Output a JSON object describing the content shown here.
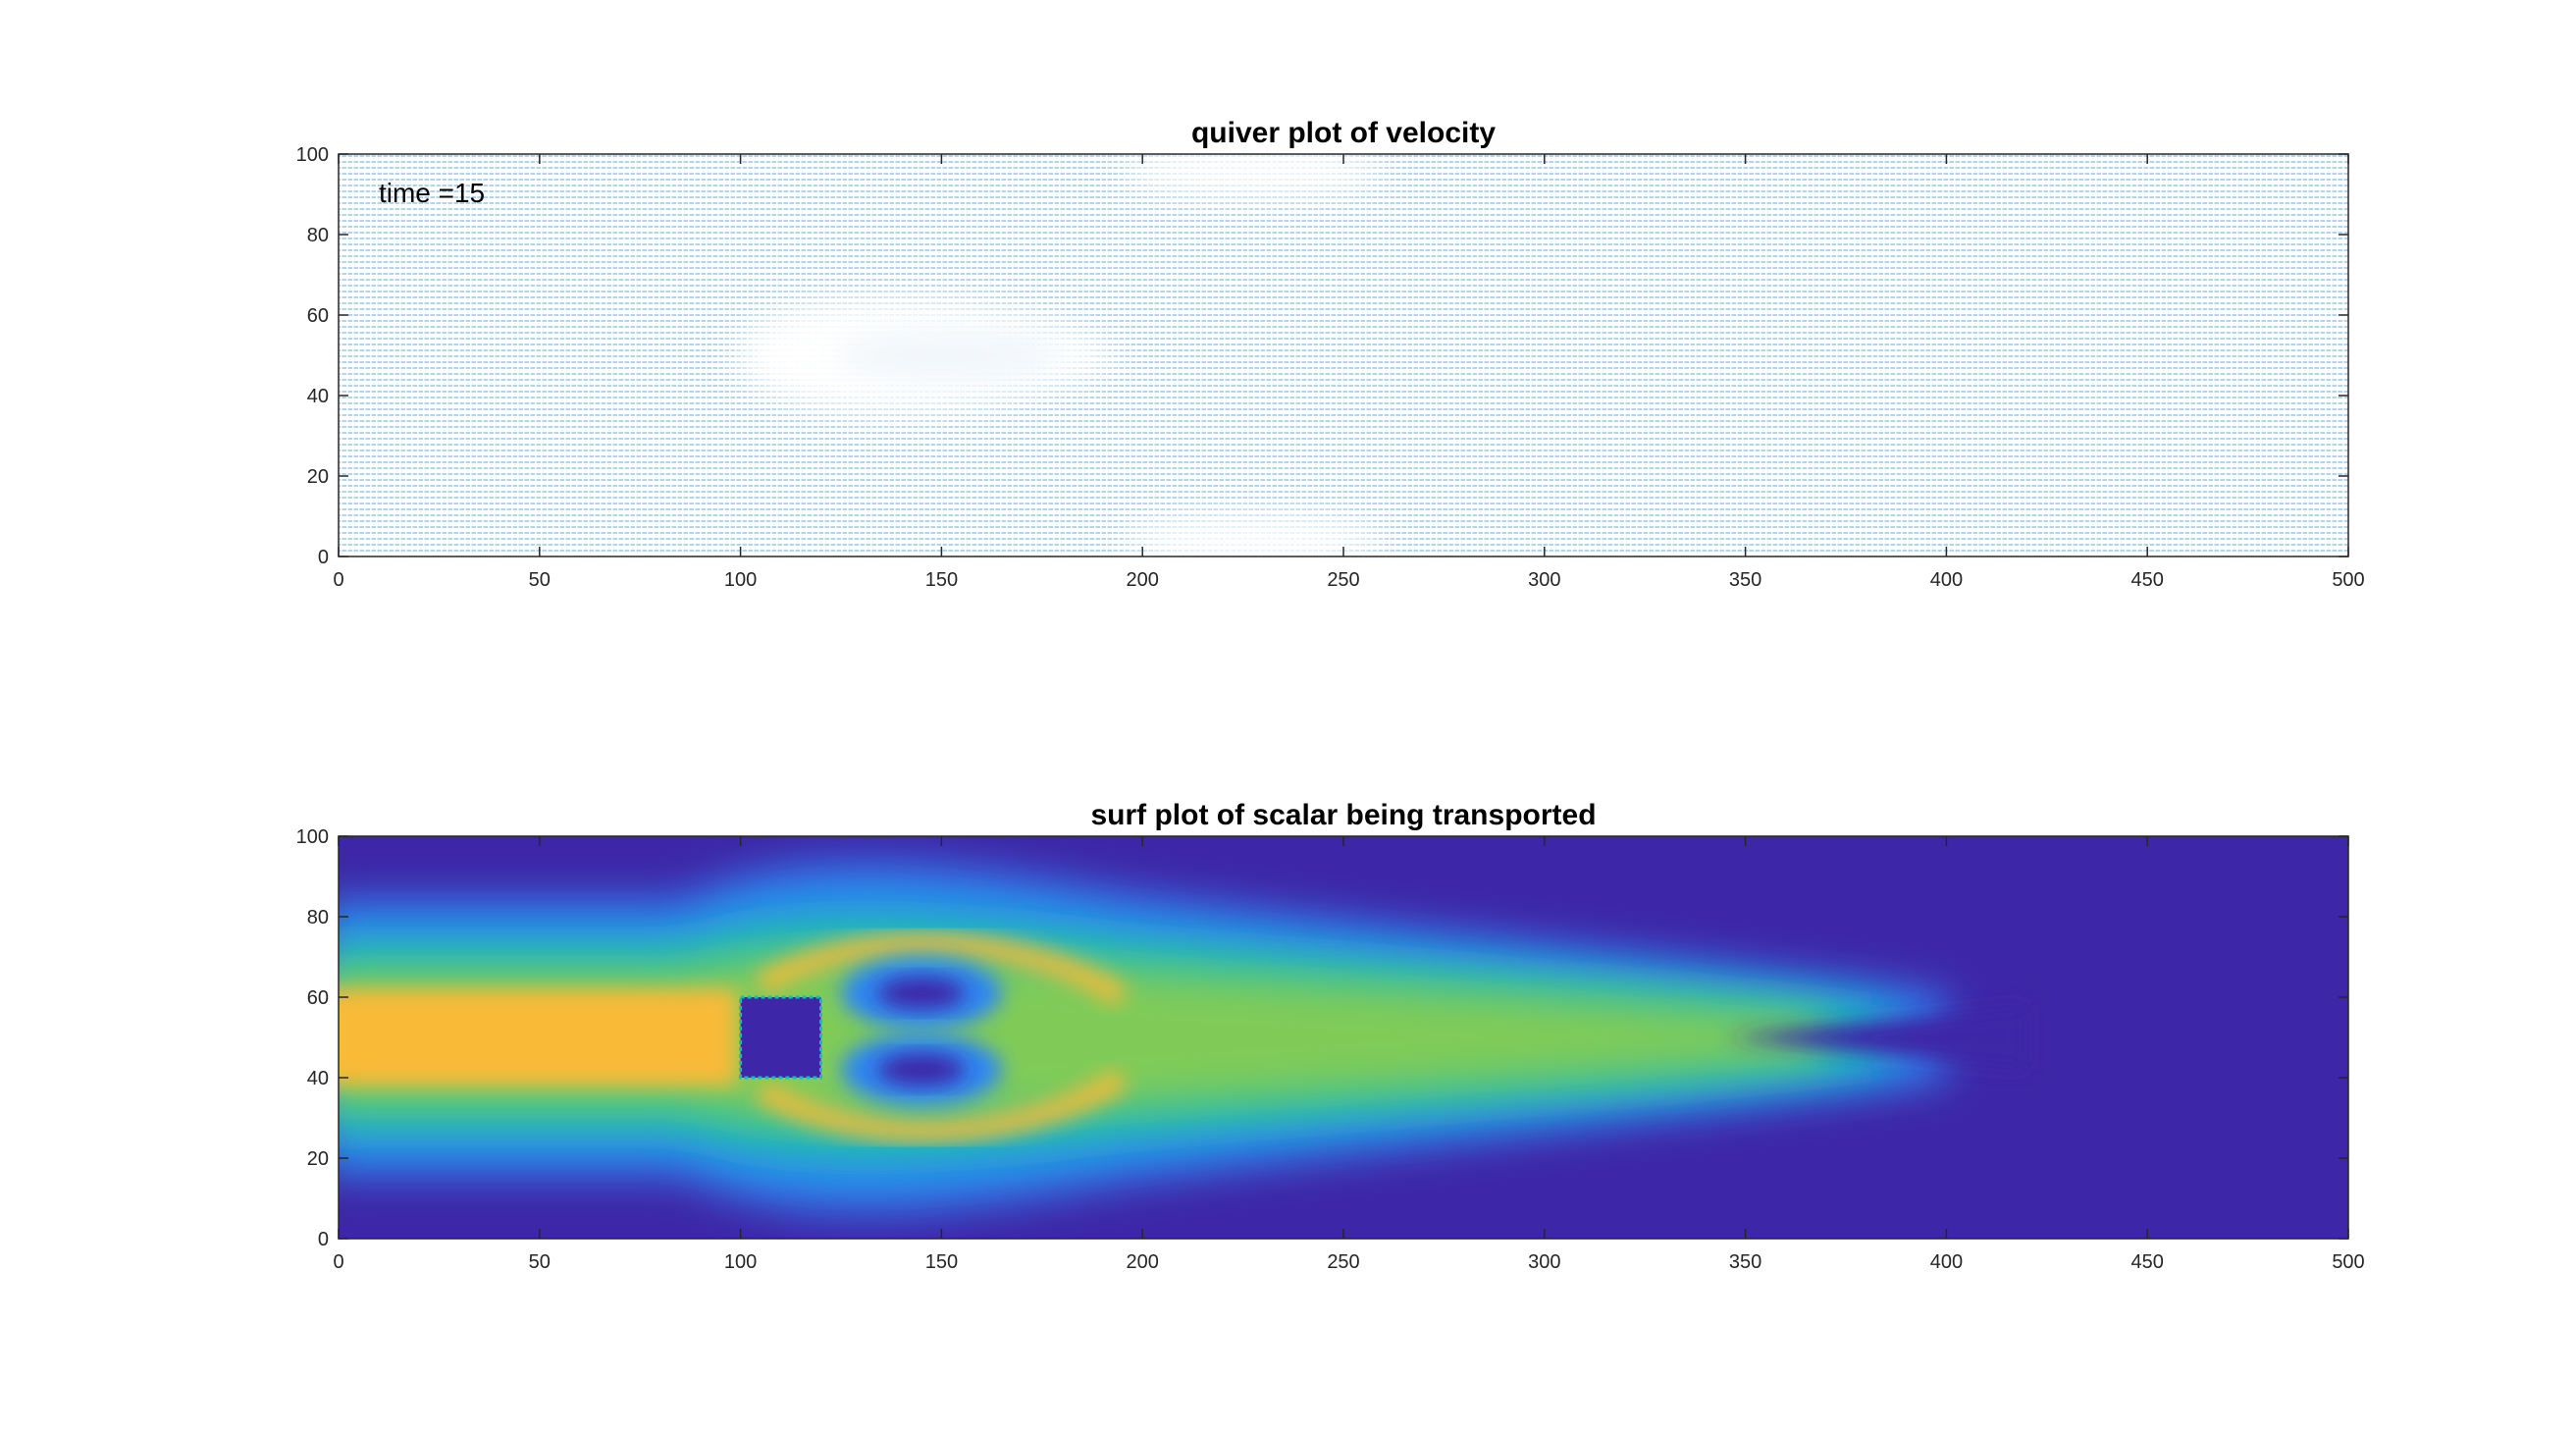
{
  "figure": {
    "background": "#ffffff"
  },
  "chart_data": [
    {
      "type": "quiver",
      "title": "quiver plot of velocity",
      "xlabel": "",
      "ylabel": "",
      "xlim": [
        0,
        500
      ],
      "ylim": [
        0,
        100
      ],
      "xticks": [
        "0",
        "50",
        "100",
        "150",
        "200",
        "250",
        "300",
        "350",
        "400",
        "450",
        "500"
      ],
      "yticks": [
        "0",
        "20",
        "40",
        "60",
        "80",
        "100"
      ],
      "annotation": {
        "text": "time =15",
        "x": 10,
        "y": 88
      },
      "arrow_color": "#0072BD",
      "grid": false,
      "regions": [
        {
          "shape": "teardrop-wake",
          "x_range": [
            100,
            195
          ],
          "y_range": [
            35,
            65
          ],
          "meaning": "low-velocity region"
        },
        {
          "shape": "upper-band",
          "x_range": [
            200,
            255
          ],
          "y_range": [
            92,
            100
          ],
          "meaning": "low-velocity region"
        },
        {
          "shape": "lower-band",
          "x_range": [
            200,
            255
          ],
          "y_range": [
            0,
            8
          ],
          "meaning": "low-velocity region"
        }
      ]
    },
    {
      "type": "heatmap",
      "title": "surf plot of scalar being transported",
      "xlabel": "",
      "ylabel": "",
      "xlim": [
        0,
        500
      ],
      "ylim": [
        0,
        100
      ],
      "xticks": [
        "0",
        "50",
        "100",
        "150",
        "200",
        "250",
        "300",
        "350",
        "400",
        "450",
        "500"
      ],
      "yticks": [
        "0",
        "20",
        "40",
        "60",
        "80",
        "100"
      ],
      "colormap": "parula",
      "colors": {
        "low": "#3E26A8",
        "blue": "#2E87F1",
        "cyan": "#12BEB9",
        "green": "#80CB58",
        "yellow": "#F9BA38",
        "high": "#FAD42C"
      },
      "obstacle": {
        "x_range": [
          100,
          120
        ],
        "y_range": [
          40,
          60
        ]
      },
      "grid": false,
      "legend": "none"
    }
  ]
}
